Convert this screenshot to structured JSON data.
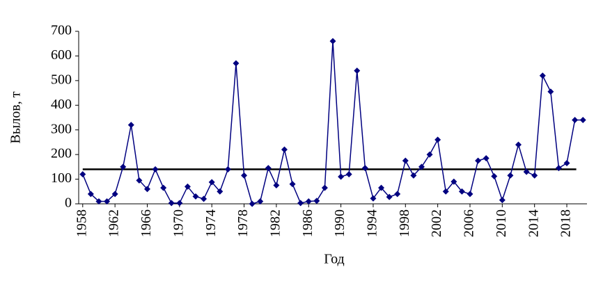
{
  "chart_data": {
    "type": "line",
    "x_label": "Год",
    "y_label": "Вылов, т",
    "x": [
      1958,
      1959,
      1960,
      1961,
      1962,
      1963,
      1964,
      1965,
      1966,
      1967,
      1968,
      1969,
      1970,
      1971,
      1972,
      1973,
      1974,
      1975,
      1976,
      1977,
      1978,
      1979,
      1980,
      1981,
      1982,
      1983,
      1984,
      1985,
      1986,
      1987,
      1988,
      1989,
      1990,
      1991,
      1992,
      1993,
      1994,
      1995,
      1996,
      1997,
      1998,
      1999,
      2000,
      2001,
      2002,
      2003,
      2004,
      2005,
      2006,
      2007,
      2008,
      2009,
      2010,
      2011,
      2012,
      2013,
      2014,
      2015,
      2016,
      2017,
      2018,
      2019,
      2020
    ],
    "series": [
      {
        "color": "#000080",
        "values": [
          120,
          40,
          10,
          10,
          40,
          150,
          320,
          95,
          60,
          140,
          65,
          3,
          3,
          70,
          30,
          20,
          88,
          50,
          140,
          570,
          115,
          0,
          10,
          145,
          75,
          220,
          80,
          3,
          10,
          12,
          65,
          660,
          110,
          120,
          540,
          145,
          22,
          65,
          28,
          40,
          175,
          115,
          150,
          200,
          260,
          50,
          90,
          50,
          40,
          175,
          185,
          112,
          15,
          115,
          240,
          130,
          115,
          520,
          455,
          145,
          165,
          340,
          340
        ]
      }
    ],
    "mean_line": {
      "value": 140,
      "color": "#000000"
    },
    "xlim": [
      1957.5,
      2020.5
    ],
    "xticks": [
      1958,
      1962,
      1966,
      1970,
      1974,
      1978,
      1982,
      1986,
      1990,
      1994,
      1998,
      2002,
      2006,
      2010,
      2014,
      2018
    ],
    "ylim": [
      0,
      700
    ],
    "yticks": [
      0,
      100,
      200,
      300,
      400,
      500,
      600,
      700
    ]
  }
}
